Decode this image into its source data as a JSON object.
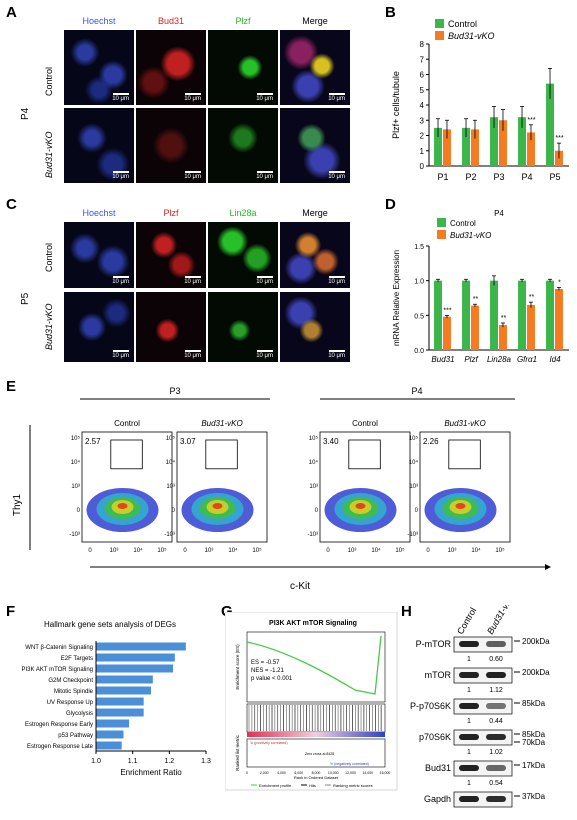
{
  "panels": {
    "A": "A",
    "B": "B",
    "C": "C",
    "D": "D",
    "E": "E",
    "F": "F",
    "G": "G",
    "H": "H"
  },
  "panel_a": {
    "channels": [
      "Hoechst",
      "Bud31",
      "Plzf",
      "Merge"
    ],
    "channel_colors": [
      "#3a55e0",
      "#e02020",
      "#22bb22",
      "#000000"
    ],
    "stage": "P4",
    "rows": [
      "Control",
      "Bud31-vKO"
    ],
    "scale_top": "10 μm",
    "scale_bottom": "10 μm"
  },
  "panel_c": {
    "channels": [
      "Hoechst",
      "Plzf",
      "Lin28a",
      "Merge"
    ],
    "channel_colors": [
      "#3a55e0",
      "#e02020",
      "#22bb22",
      "#000000"
    ],
    "stage": "P5",
    "rows": [
      "Control",
      "Bud31-vKO"
    ],
    "scale": "10 μm"
  },
  "chart_data": [
    {
      "type": "bar",
      "panel": "B",
      "categories": [
        "P1",
        "P2",
        "P3",
        "P4",
        "P5"
      ],
      "series": [
        {
          "name": "Control",
          "color": "#3cb54a",
          "values": [
            2.5,
            2.5,
            3.2,
            3.2,
            5.4
          ],
          "errors": [
            0.6,
            0.6,
            0.7,
            0.7,
            1.0
          ]
        },
        {
          "name": "Bud31-vKO",
          "color": "#f47b20",
          "values": [
            2.4,
            2.4,
            3.0,
            2.2,
            1.0
          ],
          "errors": [
            0.6,
            0.6,
            0.7,
            0.5,
            0.5
          ]
        }
      ],
      "significance": [
        "",
        "",
        "",
        "***",
        "***"
      ],
      "ylabel": "Plzf+ cells/tubule",
      "ylim": [
        0,
        8
      ],
      "yticks": [
        0,
        1,
        2,
        3,
        4,
        5,
        6,
        7,
        8
      ]
    },
    {
      "type": "bar",
      "panel": "D",
      "title": "P4",
      "categories": [
        "Bud31",
        "Plzf",
        "Lin28a",
        "Gfrα1",
        "Id4"
      ],
      "series": [
        {
          "name": "Control",
          "color": "#3cb54a",
          "values": [
            1.0,
            1.0,
            1.0,
            1.0,
            1.0
          ],
          "errors": [
            0.02,
            0.02,
            0.07,
            0.02,
            0.02
          ]
        },
        {
          "name": "Bud31-vKO",
          "color": "#f47b20",
          "values": [
            0.48,
            0.64,
            0.36,
            0.65,
            0.88
          ],
          "errors": [
            0.02,
            0.02,
            0.03,
            0.04,
            0.02
          ]
        }
      ],
      "significance": [
        "***",
        "**",
        "**",
        "**",
        "*"
      ],
      "ylabel": "mRNA Relative Expression",
      "ylim": [
        0,
        1.5
      ],
      "yticks": [
        0.0,
        0.5,
        1.0,
        1.5
      ]
    },
    {
      "type": "bar",
      "panel": "F",
      "orientation": "horizontal",
      "title": "Hallmark gene sets analysis of DEGs",
      "categories": [
        "WNT β-Catenin Signaling",
        "E2F Targets",
        "PI3K AKT mTOR Signaling",
        "G2M Checkpoint",
        "Mitotic Spindle",
        "UV Response Up",
        "Glycolysis",
        "Estrogen Response Early",
        "p53 Pathway",
        "Estrogen Response Late"
      ],
      "values": [
        1.245,
        1.215,
        1.21,
        1.155,
        1.15,
        1.13,
        1.13,
        1.09,
        1.075,
        1.07
      ],
      "xlabel": "Enrichment Ratio",
      "xlim": [
        1.0,
        1.3
      ],
      "xticks": [
        "1.0",
        "1.1",
        "1.2",
        "1.3"
      ],
      "color": "#4a8fd8"
    }
  ],
  "panel_e": {
    "groups": [
      "P3",
      "P4"
    ],
    "plots": [
      {
        "title": "Control",
        "pct": "2.57"
      },
      {
        "title": "Bud31-vKO",
        "pct": "3.07"
      },
      {
        "title": "Control",
        "pct": "3.40"
      },
      {
        "title": "Bud31-vKO",
        "pct": "2.26"
      }
    ],
    "ylabel": "Thy1",
    "xlabel": "c-Kit",
    "yticks": [
      "10⁵",
      "10⁴",
      "10³",
      "0",
      "-10³"
    ],
    "xticks": [
      "0",
      "10³",
      "10⁴",
      "10⁵"
    ]
  },
  "panel_g": {
    "title": "PI3K AKT mTOR Signaling",
    "es": "ES = -0.57",
    "nes": "NES = -1.21",
    "pval": "p value < 0.001",
    "ylabel_top": "Enrichment score (ES)",
    "ylabel_bottom": "Ranked list metric",
    "pos_label": "'a' (positively correlated)",
    "neg_label": "'b' (negatively correlated)",
    "zero_label": "Zero cross at 8428",
    "xlabel": "Rank in Ordered Dataset",
    "legend": [
      "Enrichment profile",
      "Hits",
      "Ranking metric scores"
    ],
    "xticks": [
      "0",
      "2,000",
      "4,000",
      "6,000",
      "8,000",
      "10,000",
      "12,000",
      "14,000",
      "16,000"
    ]
  },
  "panel_h": {
    "columns": [
      "Control",
      "Bud31-vKO"
    ],
    "blots": [
      {
        "name": "P-mTOR",
        "size": "200kDa",
        "quant": [
          "1",
          "0.60"
        ]
      },
      {
        "name": "mTOR",
        "size": "200kDa",
        "quant": [
          "1",
          "1.12"
        ]
      },
      {
        "name": "P-p70S6K",
        "size": "85kDa",
        "quant": [
          "1",
          "0.44"
        ]
      },
      {
        "name": "p70S6K",
        "size": "85kDa",
        "size2": "70kDa",
        "quant": [
          "1",
          "1.02"
        ]
      },
      {
        "name": "Bud31",
        "size": "17kDa",
        "quant": [
          "1",
          "0.54"
        ]
      },
      {
        "name": "Gapdh",
        "size": "37kDa",
        "quant": []
      }
    ]
  }
}
